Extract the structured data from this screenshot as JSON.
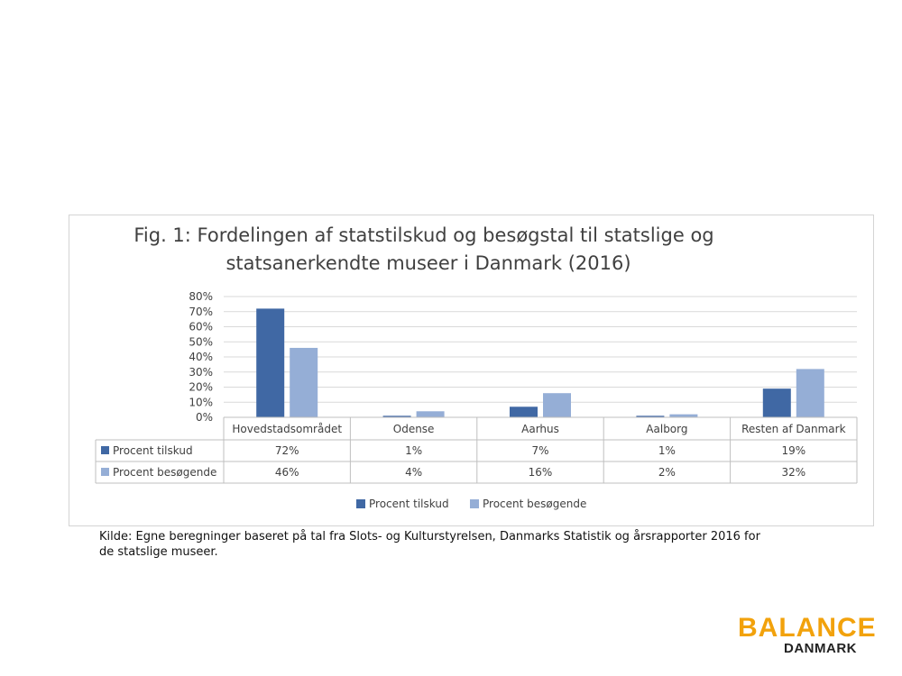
{
  "colors": {
    "series1": "#4068a4",
    "series2": "#95aed6",
    "logo_accent": "#f2a20c"
  },
  "chart_data": {
    "type": "bar",
    "title_line1": "Fig. 1: Fordelingen af statstilskud og besøgstal til statslige og",
    "title_line2": "statsanerkendte museer i Danmark (2016)",
    "categories": [
      "Hovedstadsområdet",
      "Odense",
      "Aarhus",
      "Aalborg",
      "Resten af Danmark"
    ],
    "series": [
      {
        "name": "Procent tilskud",
        "values": [
          72,
          1,
          7,
          1,
          19
        ],
        "labels": [
          "72%",
          "1%",
          "7%",
          "1%",
          "19%"
        ]
      },
      {
        "name": "Procent besøgende",
        "values": [
          46,
          4,
          16,
          2,
          32
        ],
        "labels": [
          "46%",
          "4%",
          "16%",
          "2%",
          "32%"
        ]
      }
    ],
    "yticks": [
      "0%",
      "10%",
      "20%",
      "30%",
      "40%",
      "50%",
      "60%",
      "70%",
      "80%"
    ],
    "ylim": [
      0,
      80
    ],
    "grid": true,
    "legend": "bottom",
    "data_table": true
  },
  "caption": {
    "line1": "Kilde: Egne beregninger baseret på tal fra Slots- og Kulturstyrelsen, Danmarks Statistik og årsrapporter 2016 for",
    "line2": "de statslige museer."
  },
  "logo": {
    "word1": "BALANCE",
    "word2": "DANMARK"
  }
}
